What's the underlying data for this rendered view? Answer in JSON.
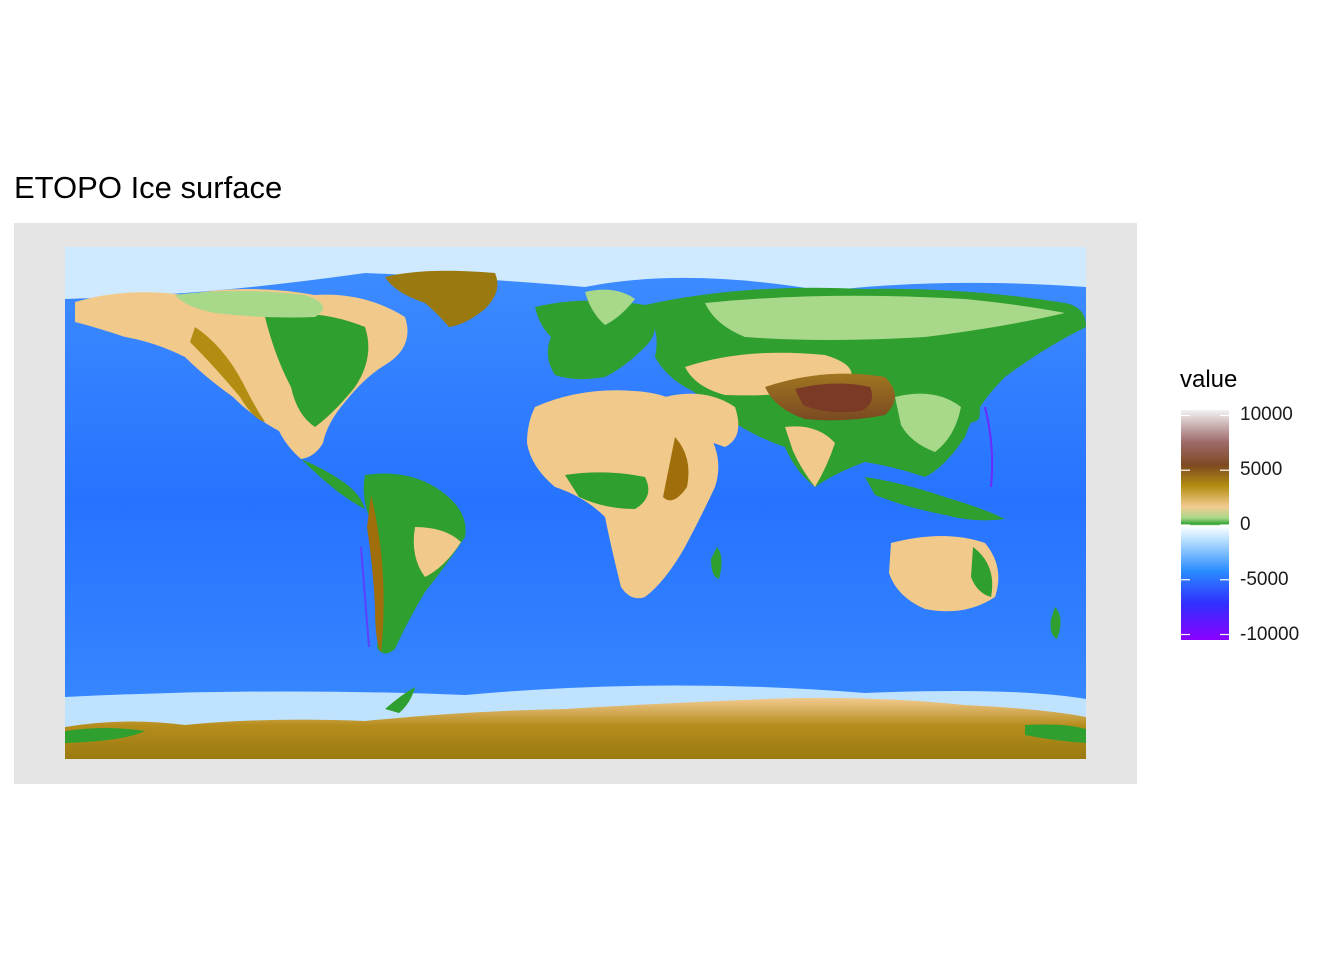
{
  "title": "ETOPO Ice surface",
  "legend": {
    "title": "value",
    "ticks": [
      {
        "value": 10000,
        "label": "10000"
      },
      {
        "value": 5000,
        "label": "5000"
      },
      {
        "value": 0,
        "label": "0"
      },
      {
        "value": -5000,
        "label": "-5000"
      },
      {
        "value": -10000,
        "label": "-10000"
      }
    ],
    "range": [
      -10500,
      10500
    ]
  },
  "colors": {
    "panel_background": "#e5e5e5",
    "ocean_deep": "#1f6fff",
    "ocean_mid": "#3d8dff",
    "ocean_shallow": "#bfe3ff",
    "ice": "#9a7a10",
    "land_low": "#2f9f2f",
    "land_mid": "#f1c98a",
    "land_high": "#a06e0a",
    "peak": "#7b3a26"
  },
  "chart_data": {
    "type": "heatmap",
    "title": "ETOPO Ice surface",
    "color_scale": {
      "name": "value",
      "stops": [
        {
          "value": -10500,
          "color": "#8b00ff"
        },
        {
          "value": -7000,
          "color": "#3030ff"
        },
        {
          "value": -4000,
          "color": "#2a8cff"
        },
        {
          "value": -800,
          "color": "#bfe3ff"
        },
        {
          "value": 0,
          "color": "#ffffff"
        },
        {
          "value": 10,
          "color": "#2ea02e"
        },
        {
          "value": 800,
          "color": "#a8d88a"
        },
        {
          "value": 1800,
          "color": "#f2ca90"
        },
        {
          "value": 3500,
          "color": "#b38d12"
        },
        {
          "value": 5500,
          "color": "#7d4a22"
        },
        {
          "value": 7500,
          "color": "#9e6a6a"
        },
        {
          "value": 10500,
          "color": "#f2f2f2"
        }
      ]
    },
    "x_range": [
      -180,
      180
    ],
    "y_range": [
      -90,
      90
    ],
    "grid": false
  }
}
